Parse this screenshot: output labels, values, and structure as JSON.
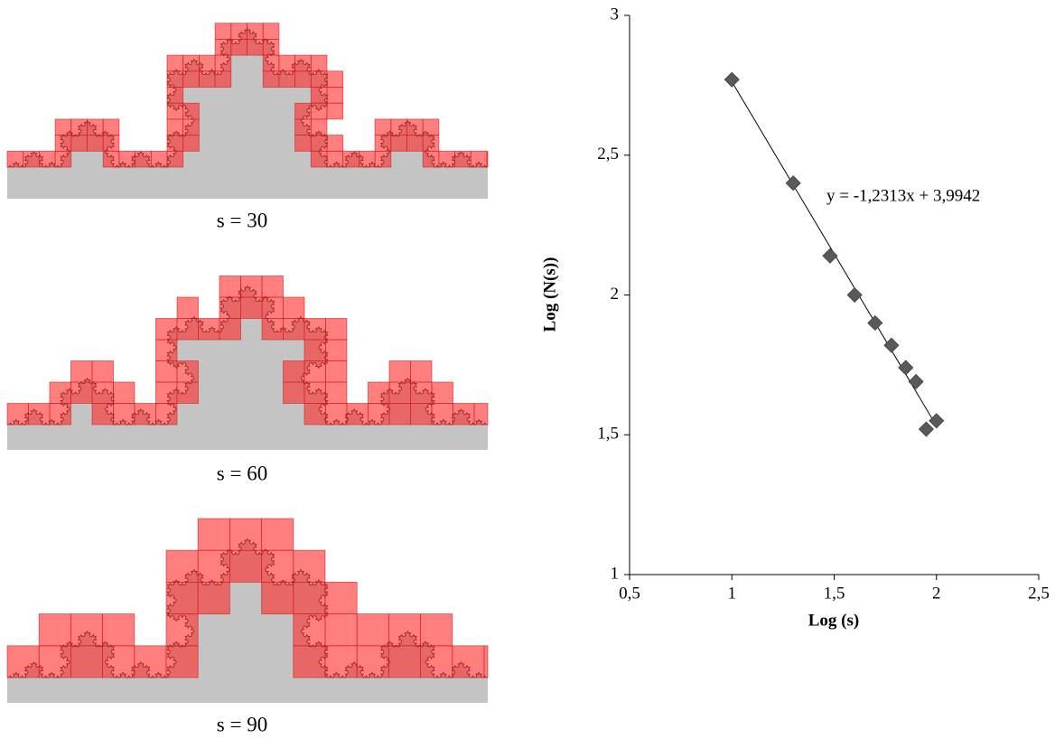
{
  "panels": [
    {
      "label": "s = 30"
    },
    {
      "label": "s = 60"
    },
    {
      "label": "s = 90"
    }
  ],
  "chart_data": {
    "type": "scatter",
    "x_label": "Log (s)",
    "y_label": "Log (N(s))",
    "x": [
      1,
      1.3,
      1.48,
      1.6,
      1.7,
      1.78,
      1.85,
      1.9,
      1.95,
      2
    ],
    "series": [
      {
        "color": "#595959",
        "values": [
          2.77,
          2.4,
          2.14,
          2.0,
          1.9,
          1.82,
          1.74,
          1.69,
          1.52,
          1.55
        ]
      }
    ],
    "trendline": {
      "slope": -1.2313,
      "intercept": 3.9942,
      "xrange": [
        1,
        2
      ],
      "label": "y = -1,2313x + 3,9942",
      "color": "#000000"
    },
    "xlim": [
      0.5,
      2.5
    ],
    "xticks": [
      {
        "value": 0.5,
        "label": "0,5"
      },
      1,
      {
        "value": 1.5,
        "label": "1,5"
      },
      2,
      {
        "value": 2.5,
        "label": "2,5"
      }
    ],
    "ylim": [
      1,
      3
    ],
    "yticks": [
      1,
      {
        "value": 1.5,
        "label": "1,5"
      },
      2,
      {
        "value": 2.5,
        "label": "2,5"
      },
      3
    ],
    "grid": false
  }
}
